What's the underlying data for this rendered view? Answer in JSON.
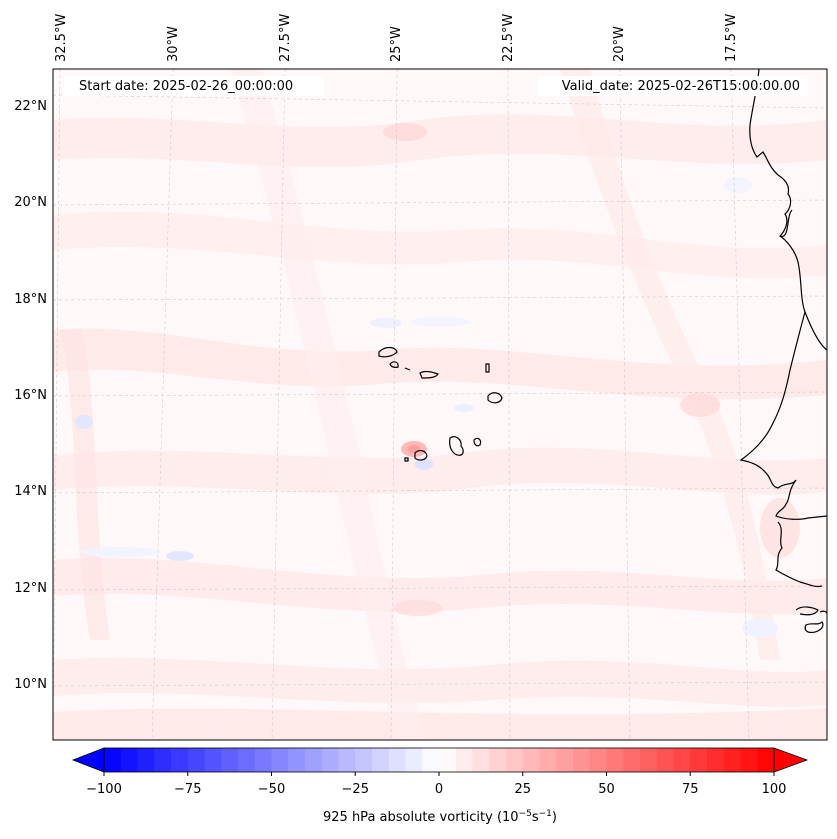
{
  "map": {
    "top_labels": [
      "32.5°W",
      "30°W",
      "27.5°W",
      "25°W",
      "22.5°W",
      "20°W",
      "17.5°W"
    ],
    "left_labels": [
      "22°N",
      "20°N",
      "18°N",
      "16°N",
      "14°N",
      "12°N",
      "10°N"
    ],
    "start_date": "Start date: 2025-02-26_00:00:00",
    "valid_date": "Valid_date: 2025-02-26T15:00:00.00"
  },
  "colorbar": {
    "ticks": [
      "−100",
      "−75",
      "−50",
      "−25",
      "0",
      "25",
      "50",
      "75",
      "100"
    ],
    "label_main": "925 hPa absolute vorticity (10",
    "label_sup1": "−5",
    "label_mid": "s",
    "label_sup2": "−1",
    "label_end": ")",
    "min": -100,
    "max": 100,
    "colors": {
      "negative": "#0000ff",
      "zero": "#ffffff",
      "positive": "#ff0000"
    }
  }
}
